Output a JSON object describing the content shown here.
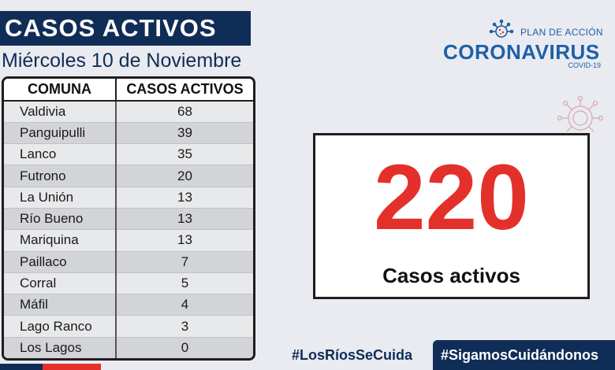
{
  "header": {
    "title": "CASOS ACTIVOS",
    "date": "Miércoles 10 de Noviembre"
  },
  "table": {
    "columns": [
      "COMUNA",
      "CASOS ACTIVOS"
    ],
    "rows": [
      {
        "comuna": "Valdivia",
        "casos": "68"
      },
      {
        "comuna": "Panguipulli",
        "casos": "39"
      },
      {
        "comuna": "Lanco",
        "casos": "35"
      },
      {
        "comuna": "Futrono",
        "casos": "20"
      },
      {
        "comuna": "La Unión",
        "casos": "13"
      },
      {
        "comuna": "Río Bueno",
        "casos": "13"
      },
      {
        "comuna": "Mariquina",
        "casos": "13"
      },
      {
        "comuna": "Paillaco",
        "casos": "7"
      },
      {
        "comuna": "Corral",
        "casos": "5"
      },
      {
        "comuna": "Máfil",
        "casos": "4"
      },
      {
        "comuna": "Lago Ranco",
        "casos": "3"
      },
      {
        "comuna": "Los Lagos",
        "casos": "0"
      }
    ]
  },
  "logo": {
    "plan": "PLAN DE ACCIÓN",
    "name": "CORONAVIRUS",
    "covid": "COVID-19",
    "icon": "virus-icon"
  },
  "total": {
    "number": "220",
    "label": "Casos activos"
  },
  "hashtags": {
    "first": "#LosRíosSeCuida",
    "second": "#SigamosCuidándonos"
  },
  "colors": {
    "navy": "#0f2d57",
    "red": "#e4302b",
    "logo_blue": "#1f5fa8",
    "background": "#e9ebf0"
  }
}
